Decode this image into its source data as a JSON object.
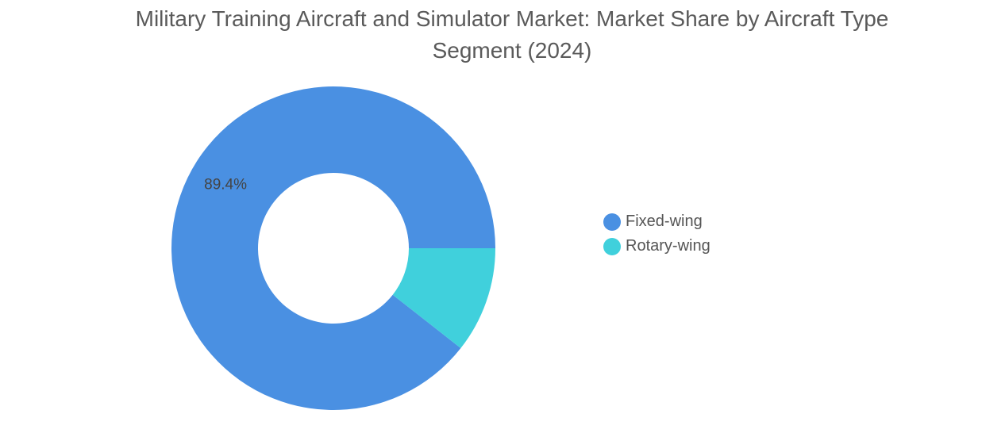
{
  "chart_data": {
    "type": "pie",
    "variant": "donut",
    "title_lines": [
      "Military Training Aircraft and Simulator Market: Market Share by Aircraft Type",
      "Segment (2024)"
    ],
    "categories": [
      "Fixed-wing",
      "Rotary-wing"
    ],
    "values": [
      89.4,
      10.6
    ],
    "data_labels": [
      "89.4%",
      ""
    ],
    "colors": [
      "#4a90e2",
      "#40d0dc"
    ],
    "legend_position": "right"
  }
}
